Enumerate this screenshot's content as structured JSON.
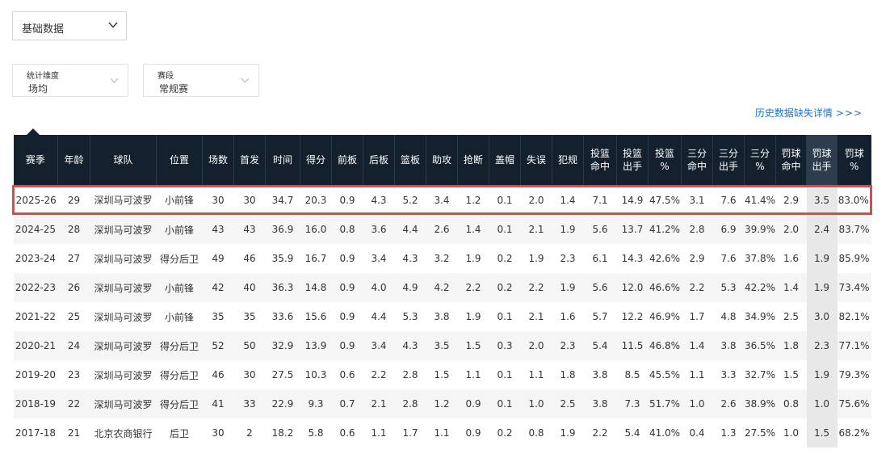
{
  "category_select": {
    "value": "基础数据"
  },
  "filters": [
    {
      "label": "统计维度",
      "value": "场均"
    },
    {
      "label": "赛段",
      "value": "常规赛"
    }
  ],
  "history_link": {
    "text": "历史数据缺失详情",
    "arrows": ">>>"
  },
  "table": {
    "headers": [
      [
        "赛季"
      ],
      [
        "年龄"
      ],
      [
        "球队"
      ],
      [
        "位置"
      ],
      [
        "场数"
      ],
      [
        "首发"
      ],
      [
        "时间"
      ],
      [
        "得分"
      ],
      [
        "前板"
      ],
      [
        "后板"
      ],
      [
        "篮板"
      ],
      [
        "助攻"
      ],
      [
        "抢断"
      ],
      [
        "盖帽"
      ],
      [
        "失误"
      ],
      [
        "犯规"
      ],
      [
        "投篮",
        "命中"
      ],
      [
        "投篮",
        "出手"
      ],
      [
        "投篮",
        "%"
      ],
      [
        "三分",
        "命中"
      ],
      [
        "三分",
        "出手"
      ],
      [
        "三分",
        "%"
      ],
      [
        "罚球",
        "命中"
      ],
      [
        "罚球",
        "出手"
      ],
      [
        "罚球",
        "%"
      ]
    ],
    "active_column": 23,
    "rows": [
      [
        "2025-26",
        "29",
        "深圳马可波罗",
        "小前锋",
        "30",
        "30",
        "34.7",
        "20.3",
        "0.9",
        "4.3",
        "5.2",
        "3.4",
        "1.2",
        "0.1",
        "2.0",
        "1.4",
        "7.1",
        "14.9",
        "47.5%",
        "3.1",
        "7.6",
        "41.4%",
        "2.9",
        "3.5",
        "83.0%"
      ],
      [
        "2024-25",
        "28",
        "深圳马可波罗",
        "小前锋",
        "43",
        "43",
        "36.9",
        "16.0",
        "0.8",
        "3.6",
        "4.4",
        "2.6",
        "1.4",
        "0.1",
        "2.1",
        "1.9",
        "5.6",
        "13.7",
        "41.2%",
        "2.8",
        "6.9",
        "39.9%",
        "2.0",
        "2.4",
        "83.7%"
      ],
      [
        "2023-24",
        "27",
        "深圳马可波罗",
        "得分后卫",
        "49",
        "46",
        "35.9",
        "16.7",
        "0.9",
        "3.4",
        "4.3",
        "3.2",
        "1.9",
        "0.2",
        "1.9",
        "2.3",
        "6.1",
        "14.3",
        "42.6%",
        "2.9",
        "7.6",
        "37.8%",
        "1.6",
        "1.9",
        "85.9%"
      ],
      [
        "2022-23",
        "26",
        "深圳马可波罗",
        "小前锋",
        "42",
        "40",
        "36.3",
        "14.8",
        "0.9",
        "4.0",
        "4.9",
        "4.2",
        "2.2",
        "0.2",
        "2.2",
        "1.9",
        "5.6",
        "12.0",
        "46.6%",
        "2.2",
        "5.3",
        "42.2%",
        "1.4",
        "1.9",
        "73.4%"
      ],
      [
        "2021-22",
        "25",
        "深圳马可波罗",
        "小前锋",
        "35",
        "35",
        "33.6",
        "15.6",
        "0.9",
        "4.4",
        "5.3",
        "3.8",
        "1.9",
        "0.1",
        "2.1",
        "1.6",
        "5.7",
        "12.2",
        "46.9%",
        "1.7",
        "4.8",
        "34.9%",
        "2.5",
        "3.0",
        "82.1%"
      ],
      [
        "2020-21",
        "24",
        "深圳马可波罗",
        "得分后卫",
        "52",
        "50",
        "32.9",
        "13.9",
        "0.9",
        "3.4",
        "4.3",
        "3.5",
        "1.5",
        "0.3",
        "2.0",
        "2.3",
        "5.4",
        "11.5",
        "46.8%",
        "1.4",
        "3.8",
        "36.5%",
        "1.8",
        "2.3",
        "77.1%"
      ],
      [
        "2019-20",
        "23",
        "深圳马可波罗",
        "得分后卫",
        "46",
        "30",
        "27.5",
        "10.3",
        "0.6",
        "2.2",
        "2.8",
        "1.5",
        "1.1",
        "0.1",
        "1.1",
        "1.8",
        "3.8",
        "8.5",
        "45.5%",
        "1.1",
        "3.3",
        "32.7%",
        "1.5",
        "1.9",
        "79.3%"
      ],
      [
        "2018-19",
        "22",
        "深圳马可波罗",
        "得分后卫",
        "41",
        "33",
        "22.9",
        "9.3",
        "0.7",
        "2.1",
        "2.8",
        "1.2",
        "0.9",
        "0.1",
        "1.0",
        "2.5",
        "3.8",
        "7.3",
        "51.7%",
        "1.0",
        "2.6",
        "38.9%",
        "0.8",
        "1.0",
        "75.6%"
      ],
      [
        "2017-18",
        "21",
        "北京农商银行",
        "后卫",
        "30",
        "2",
        "18.2",
        "5.8",
        "0.6",
        "1.1",
        "1.7",
        "1.1",
        "0.9",
        "0.2",
        "0.8",
        "1.9",
        "2.2",
        "5.4",
        "41.0%",
        "0.4",
        "1.3",
        "27.5%",
        "1.0",
        "1.5",
        "68.2%"
      ]
    ]
  }
}
